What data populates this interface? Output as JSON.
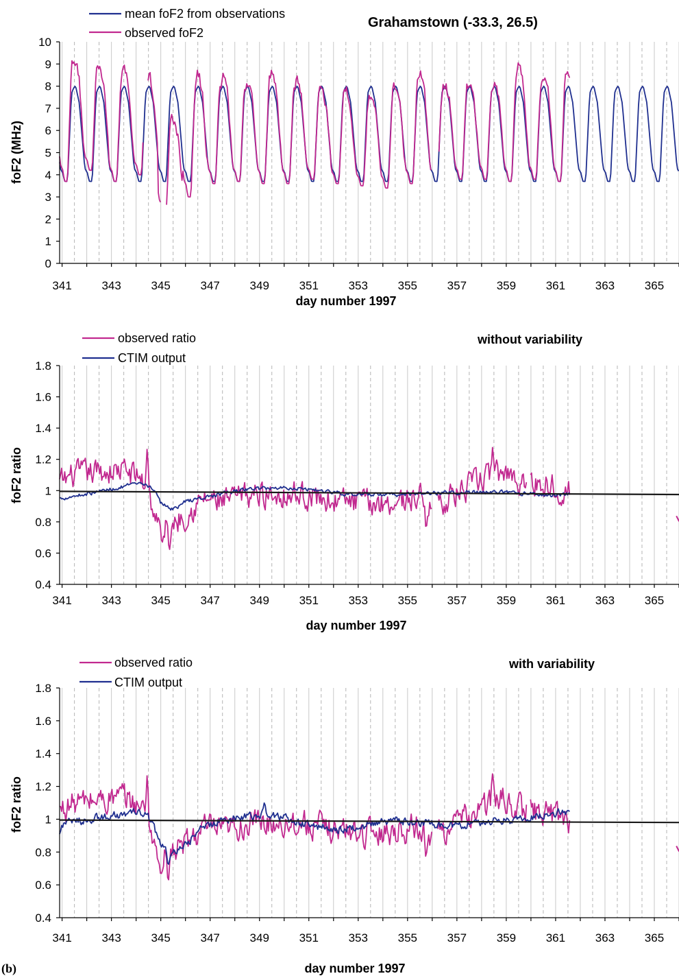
{
  "panel_label": "(b)",
  "colors": {
    "observed": "#c1288f",
    "model": "#1f2f8f",
    "reference": "#1a1a1a",
    "grid_solid": "#c8c8c8",
    "grid_dashed": "#b4b4b4"
  },
  "chart_data": [
    {
      "type": "line",
      "title": "Grahamstown (-33.3, 26.5)",
      "xlabel": "day number 1997",
      "ylabel": "foF2 (MHz)",
      "xlim": [
        340.9,
        366.0
      ],
      "ylim": [
        0,
        10
      ],
      "yticks": [
        "0",
        "1",
        "2",
        "3",
        "4",
        "5",
        "6",
        "7",
        "8",
        "9",
        "10"
      ],
      "xticks": [
        "341",
        "343",
        "345",
        "347",
        "349",
        "351",
        "353",
        "355",
        "357",
        "359",
        "361",
        "363",
        "365"
      ],
      "legend": [
        {
          "name": "mean foF2 from observations",
          "color": "#1f2f8f"
        },
        {
          "name": "observed foF2",
          "color": "#c1288f"
        }
      ],
      "series": [
        {
          "name": "mean foF2 from observations",
          "kind": "diurnal",
          "x_start": 340.9,
          "x_end": 366.0,
          "min": 3.7,
          "max": 8.0
        },
        {
          "name": "observed foF2",
          "kind": "diurnal_noisy",
          "x_start": 340.9,
          "x_end": 361.6,
          "daily_peaks": [
            9.2,
            8.8,
            8.8,
            8.4,
            6.6,
            8.5,
            8.4,
            8.3,
            8.6,
            8.4,
            8.0,
            7.7,
            7.6,
            8.0,
            8.4,
            8.2,
            8.2,
            8.4,
            8.9,
            8.5,
            8.8
          ],
          "daily_minima": [
            3.7,
            4.2,
            3.7,
            4.0,
            2.3,
            3.0,
            3.6,
            3.7,
            3.6,
            3.6,
            3.8,
            3.6,
            3.5,
            3.4,
            3.6,
            3.6,
            3.8,
            3.8,
            3.7,
            3.8,
            3.7
          ],
          "gaps": [
            [
              344.3,
              344.45
            ],
            [
              345.0,
              345.2
            ],
            [
              355.95,
              356.25
            ]
          ]
        }
      ]
    },
    {
      "type": "line",
      "title": "without variability",
      "xlabel": "day number 1997",
      "ylabel": "foF2 ratio",
      "xlim": [
        340.9,
        366.0
      ],
      "ylim": [
        0.4,
        1.8
      ],
      "yticks": [
        "0.4",
        "0.6",
        "0.8",
        "1",
        "1.2",
        "1.4",
        "1.6",
        "1.8"
      ],
      "xticks": [
        "341",
        "343",
        "345",
        "347",
        "349",
        "351",
        "353",
        "355",
        "357",
        "359",
        "361",
        "363",
        "365"
      ],
      "legend": [
        {
          "name": "observed ratio",
          "color": "#c1288f"
        },
        {
          "name": "CTIM output",
          "color": "#1f2f8f"
        }
      ],
      "series": [
        {
          "name": "observed ratio",
          "x_start": 340.9,
          "x_end": 361.6,
          "control_x": [
            340.9,
            341.5,
            342.5,
            343.5,
            344.2,
            344.6,
            345.0,
            345.5,
            346.0,
            346.8,
            347.5,
            348.5,
            349.5,
            350.5,
            351.5,
            352.5,
            353.5,
            354.5,
            355.5,
            356.0,
            356.6,
            357.3,
            358.0,
            358.5,
            359.0,
            359.7,
            360.5,
            361.2,
            361.6
          ],
          "control_y": [
            1.05,
            1.1,
            1.12,
            1.13,
            1.08,
            0.92,
            0.75,
            0.8,
            0.85,
            0.95,
            0.92,
            0.97,
            0.98,
            0.98,
            0.95,
            0.93,
            0.92,
            0.93,
            0.96,
            0.9,
            0.95,
            1.0,
            1.07,
            1.1,
            1.12,
            1.05,
            1.05,
            1.02,
            1.0
          ],
          "amplitude": 0.13,
          "extremes": [
            [
              344.45,
              1.27
            ],
            [
              345.35,
              0.62
            ],
            [
              345.05,
              0.66
            ],
            [
              358.45,
              1.28
            ],
            [
              355.75,
              0.76
            ]
          ],
          "gaps": [
            [
              356.0,
              356.22
            ],
            [
              359.85,
              359.95
            ],
            [
              361.7,
              365.9
            ]
          ],
          "end_point": [
            365.95,
            0.82
          ]
        },
        {
          "name": "CTIM output",
          "x_start": 340.9,
          "x_end": 361.6,
          "control_x": [
            340.9,
            342.0,
            343.0,
            344.0,
            344.6,
            345.0,
            345.5,
            346.0,
            347.5,
            348.5,
            350.0,
            351.0,
            352.5,
            354.0,
            355.5,
            357.0,
            358.5,
            360.0,
            361.0,
            361.6
          ],
          "control_y": [
            0.95,
            0.98,
            1.01,
            1.04,
            1.03,
            0.92,
            0.88,
            0.93,
            0.98,
            1.01,
            1.02,
            1.01,
            0.98,
            0.97,
            0.98,
            0.99,
            0.99,
            0.98,
            0.97,
            0.98
          ],
          "amplitude": 0.02
        },
        {
          "name": "reference",
          "kind": "straight",
          "points": [
            [
              340.9,
              0.995
            ],
            [
              366.0,
              0.975
            ]
          ]
        }
      ]
    },
    {
      "type": "line",
      "title": "with variability",
      "xlabel": "day number 1997",
      "ylabel": "foF2 ratio",
      "xlim": [
        340.9,
        366.0
      ],
      "ylim": [
        0.4,
        1.8
      ],
      "yticks": [
        "0.4",
        "0.6",
        "0.8",
        "1",
        "1.2",
        "1.4",
        "1.6",
        "1.8"
      ],
      "xticks": [
        "341",
        "343",
        "345",
        "347",
        "349",
        "351",
        "353",
        "355",
        "357",
        "359",
        "361",
        "363",
        "365"
      ],
      "legend": [
        {
          "name": "observed ratio",
          "color": "#c1288f"
        },
        {
          "name": "CTIM output",
          "color": "#1f2f8f"
        }
      ],
      "series": [
        {
          "name": "observed ratio",
          "x_start": 340.9,
          "x_end": 361.6,
          "control_x": [
            340.9,
            341.5,
            342.5,
            343.5,
            344.2,
            344.6,
            345.0,
            345.5,
            346.0,
            346.8,
            347.5,
            348.5,
            349.5,
            350.5,
            351.5,
            352.5,
            353.5,
            354.5,
            355.5,
            356.0,
            356.6,
            357.3,
            358.0,
            358.5,
            359.0,
            359.7,
            360.5,
            361.2,
            361.6
          ],
          "control_y": [
            1.05,
            1.1,
            1.12,
            1.13,
            1.08,
            0.92,
            0.75,
            0.8,
            0.85,
            0.95,
            0.92,
            0.97,
            0.98,
            0.98,
            0.95,
            0.93,
            0.92,
            0.93,
            0.96,
            0.9,
            0.95,
            1.0,
            1.07,
            1.1,
            1.12,
            1.05,
            1.05,
            1.02,
            1.0
          ],
          "amplitude": 0.13,
          "extremes": [
            [
              344.45,
              1.27
            ],
            [
              345.3,
              0.62
            ],
            [
              345.0,
              0.66
            ],
            [
              358.45,
              1.28
            ],
            [
              355.75,
              0.76
            ]
          ],
          "gaps": [
            [
              356.0,
              356.22
            ],
            [
              359.85,
              359.95
            ],
            [
              361.7,
              365.9
            ]
          ],
          "end_point": [
            365.95,
            0.82
          ]
        },
        {
          "name": "CTIM output",
          "x_start": 340.9,
          "x_end": 361.6,
          "control_x": [
            340.9,
            341.0,
            342.0,
            343.0,
            344.0,
            344.5,
            345.0,
            345.4,
            345.9,
            346.5,
            347.5,
            348.5,
            349.5,
            350.5,
            351.5,
            352.5,
            353.5,
            354.5,
            355.5,
            356.5,
            357.5,
            358.5,
            359.5,
            360.5,
            361.6
          ],
          "control_y": [
            0.9,
            0.97,
            1.0,
            1.02,
            1.04,
            1.02,
            0.85,
            0.78,
            0.82,
            0.93,
            1.0,
            1.02,
            1.03,
            0.98,
            0.95,
            0.94,
            0.97,
            0.99,
            0.98,
            0.96,
            0.97,
            0.99,
            1.0,
            1.03,
            1.05
          ],
          "amplitude": 0.04,
          "extremes": [
            [
              345.3,
              0.72
            ],
            [
              349.2,
              1.1
            ]
          ]
        },
        {
          "name": "reference",
          "kind": "straight",
          "points": [
            [
              340.9,
              0.995
            ],
            [
              366.0,
              0.98
            ]
          ]
        }
      ]
    }
  ]
}
